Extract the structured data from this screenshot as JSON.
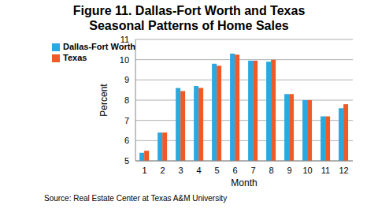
{
  "chart_data": {
    "type": "bar",
    "title": "Figure 11. Dallas-Fort Worth and Texas Seasonal Patterns of Home Sales",
    "x_label": "Month",
    "y_label": "Percent",
    "source": "Source: Real Estate Center at Texas A&M University",
    "categories": [
      "1",
      "2",
      "3",
      "4",
      "5",
      "6",
      "7",
      "8",
      "9",
      "10",
      "11",
      "12"
    ],
    "series": [
      {
        "name": "Dallas-Fort Worth",
        "color": "#29a9e1",
        "values": [
          5.4,
          6.4,
          8.6,
          8.7,
          9.8,
          10.3,
          9.95,
          9.9,
          8.3,
          8.0,
          7.2,
          7.6
        ]
      },
      {
        "name": "Texas",
        "color": "#ef5a28",
        "values": [
          5.5,
          6.4,
          8.45,
          8.6,
          9.7,
          10.25,
          9.95,
          10.0,
          8.3,
          8.0,
          7.2,
          7.8
        ]
      }
    ],
    "ylim": [
      5,
      11
    ],
    "yticks": [
      5,
      6,
      7,
      8,
      9,
      10,
      11
    ],
    "grid": true,
    "legend": "upper left"
  }
}
